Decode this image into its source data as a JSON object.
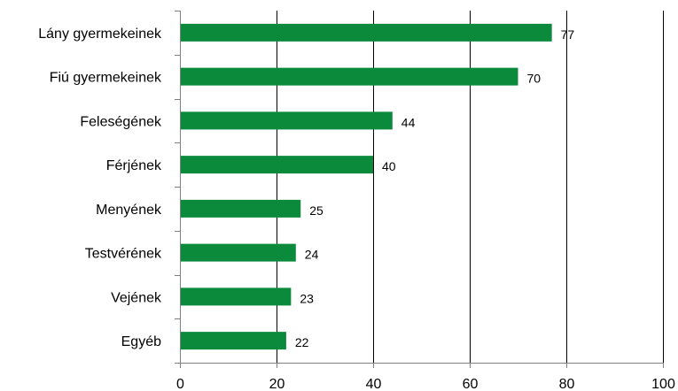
{
  "chart_data": {
    "type": "bar",
    "orientation": "horizontal",
    "categories": [
      "Lány gyermekeinek",
      "Fiú gyermekeinek",
      "Feleségének",
      "Férjének",
      "Menyének",
      "Testvérének",
      "Vejének",
      "Egyéb"
    ],
    "values": [
      77,
      70,
      44,
      40,
      25,
      24,
      23,
      22
    ],
    "data_labels": [
      "77",
      "70",
      "44",
      "40",
      "25",
      "24",
      "23",
      "22"
    ],
    "xlim": [
      0,
      100
    ],
    "ticks": [
      0,
      20,
      40,
      60,
      80,
      100
    ],
    "tick_labels": [
      "0",
      "20",
      "40",
      "60",
      "80",
      "100"
    ],
    "grid": true,
    "legend": "none",
    "colors": {
      "bar": "#0b8a3c",
      "grid": "#000000",
      "axis": "#808080"
    }
  }
}
